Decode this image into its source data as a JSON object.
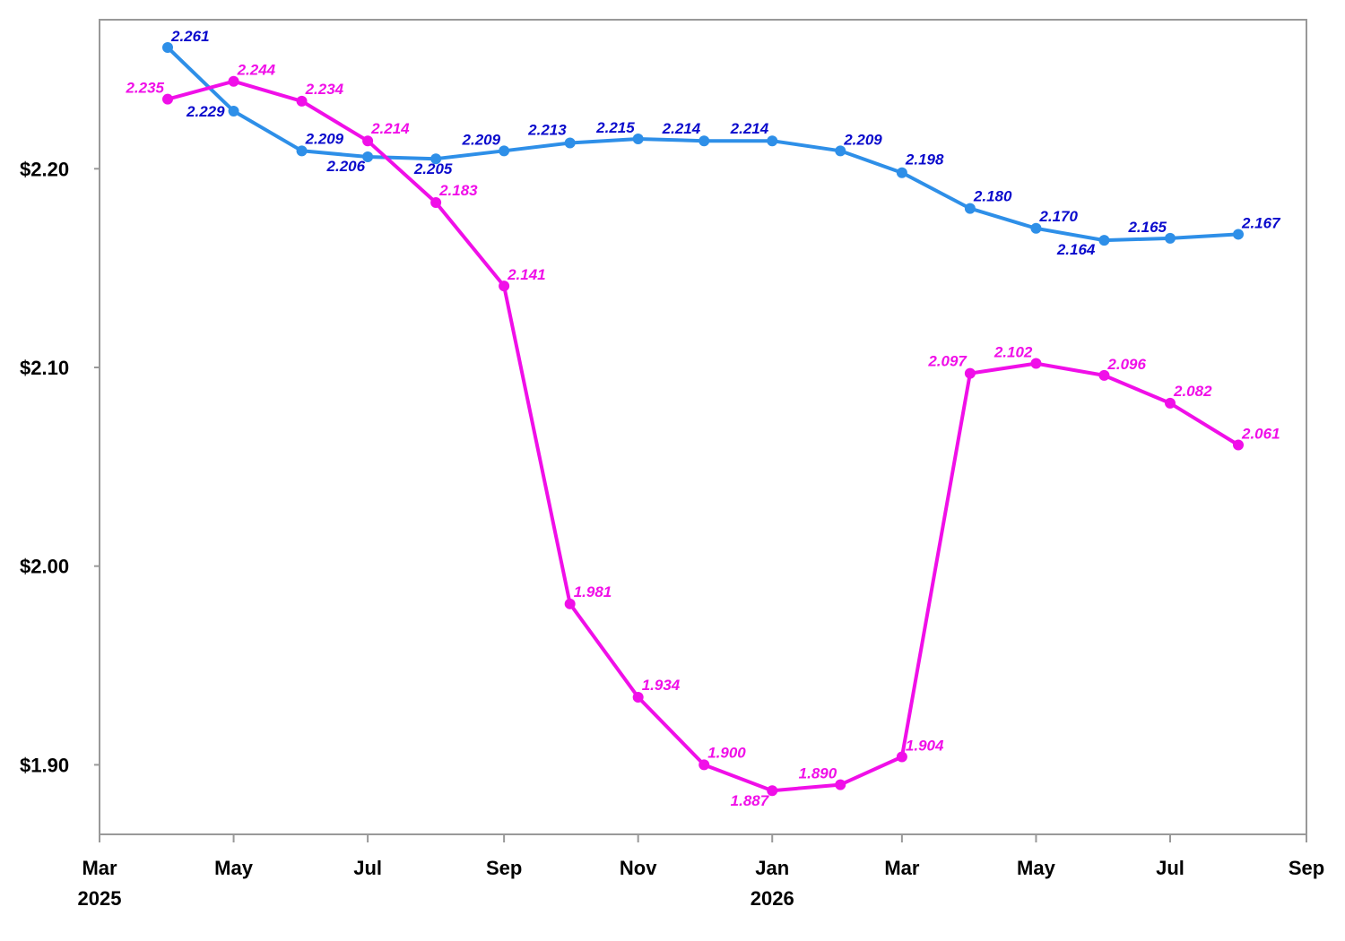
{
  "chart_data": {
    "type": "line",
    "title": "",
    "xlabel": "",
    "ylabel": "",
    "x_ticks": [
      {
        "date": "2025-03-01",
        "label": "Mar",
        "year": "2025"
      },
      {
        "date": "2025-05-01",
        "label": "May",
        "year": ""
      },
      {
        "date": "2025-07-01",
        "label": "Jul",
        "year": ""
      },
      {
        "date": "2025-09-01",
        "label": "Sep",
        "year": ""
      },
      {
        "date": "2025-11-01",
        "label": "Nov",
        "year": ""
      },
      {
        "date": "2026-01-01",
        "label": "Jan",
        "year": "2026"
      },
      {
        "date": "2026-03-01",
        "label": "Mar",
        "year": ""
      },
      {
        "date": "2026-05-01",
        "label": "May",
        "year": ""
      },
      {
        "date": "2026-07-01",
        "label": "Jul",
        "year": ""
      },
      {
        "date": "2026-09-01",
        "label": "Sep",
        "year": ""
      }
    ],
    "y_ticks": [
      {
        "value": 1.9,
        "label": "$1.90"
      },
      {
        "value": 2.0,
        "label": "$2.00"
      },
      {
        "value": 2.1,
        "label": "$2.10"
      },
      {
        "value": 2.2,
        "label": "$2.20"
      }
    ],
    "xlim": [
      "2025-03-01",
      "2026-09-01"
    ],
    "ylim": [
      1.865,
      2.275
    ],
    "grid": false,
    "legend": "none",
    "series": [
      {
        "color": "#2E8FE8",
        "label_color": "#0A0ACC",
        "x": [
          "2025-04-01",
          "2025-05-01",
          "2025-06-01",
          "2025-07-01",
          "2025-08-01",
          "2025-09-01",
          "2025-10-01",
          "2025-11-01",
          "2025-12-01",
          "2026-01-01",
          "2026-02-01",
          "2026-03-01",
          "2026-04-01",
          "2026-05-01",
          "2026-06-01",
          "2026-07-01",
          "2026-08-01"
        ],
        "values": [
          2.261,
          2.229,
          2.209,
          2.206,
          2.205,
          2.209,
          2.213,
          2.215,
          2.214,
          2.214,
          2.209,
          2.198,
          2.18,
          2.17,
          2.164,
          2.165,
          2.167
        ],
        "labels": [
          "2.261",
          "2.229",
          "2.209",
          "2.206",
          "2.205",
          "2.209",
          "2.213",
          "2.215",
          "2.214",
          "2.214",
          "2.209",
          "2.198",
          "2.180",
          "2.170",
          "2.164",
          "2.165",
          "2.167"
        ]
      },
      {
        "color": "#F00FE8",
        "label_color": "#F00FE8",
        "x": [
          "2025-04-01",
          "2025-05-01",
          "2025-06-01",
          "2025-07-01",
          "2025-08-01",
          "2025-09-01",
          "2025-10-01",
          "2025-11-01",
          "2025-12-01",
          "2026-01-01",
          "2026-02-01",
          "2026-03-01",
          "2026-04-01",
          "2026-05-01",
          "2026-06-01",
          "2026-07-01",
          "2026-08-01"
        ],
        "values": [
          2.235,
          2.244,
          2.234,
          2.214,
          2.183,
          2.141,
          1.981,
          1.934,
          1.9,
          1.887,
          1.89,
          1.904,
          2.097,
          2.102,
          2.096,
          2.082,
          2.061
        ],
        "labels": [
          "2.235",
          "2.244",
          "2.234",
          "2.214",
          "2.183",
          "2.141",
          "1.981",
          "1.934",
          "1.900",
          "1.887",
          "1.890",
          "1.904",
          "2.097",
          "2.102",
          "2.096",
          "2.082",
          "2.061"
        ]
      }
    ]
  }
}
